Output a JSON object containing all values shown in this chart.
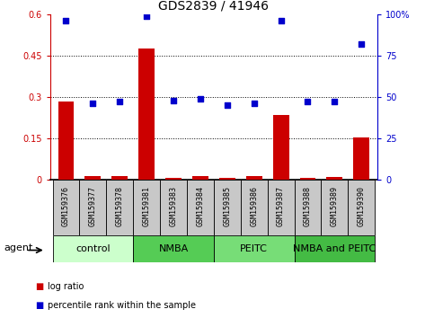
{
  "title": "GDS2839 / 41946",
  "samples": [
    "GSM159376",
    "GSM159377",
    "GSM159378",
    "GSM159381",
    "GSM159383",
    "GSM159384",
    "GSM159385",
    "GSM159386",
    "GSM159387",
    "GSM159388",
    "GSM159389",
    "GSM159390"
  ],
  "log_ratio": [
    0.285,
    0.012,
    0.013,
    0.475,
    0.008,
    0.012,
    0.007,
    0.012,
    0.235,
    0.008,
    0.009,
    0.152
  ],
  "percentile_rank": [
    96,
    46,
    47,
    99,
    48,
    49,
    45,
    46,
    96,
    47,
    47,
    82
  ],
  "ylim_left": [
    0,
    0.6
  ],
  "ylim_right": [
    0,
    100
  ],
  "yticks_left": [
    0,
    0.15,
    0.3,
    0.45,
    0.6
  ],
  "yticks_left_labels": [
    "0",
    "0.15",
    "0.3",
    "0.45",
    "0.6"
  ],
  "yticks_right": [
    0,
    25,
    50,
    75,
    100
  ],
  "yticks_right_labels": [
    "0",
    "25",
    "50",
    "75",
    "100%"
  ],
  "hlines": [
    0.15,
    0.3,
    0.45
  ],
  "bar_color": "#cc0000",
  "dot_color": "#0000cc",
  "groups": [
    {
      "label": "control",
      "start": 0,
      "end": 3,
      "color": "#ccffcc"
    },
    {
      "label": "NMBA",
      "start": 3,
      "end": 6,
      "color": "#55cc55"
    },
    {
      "label": "PEITC",
      "start": 6,
      "end": 9,
      "color": "#77dd77"
    },
    {
      "label": "NMBA and PEITC",
      "start": 9,
      "end": 12,
      "color": "#44bb44"
    }
  ],
  "left_axis_color": "#cc0000",
  "right_axis_color": "#0000cc",
  "bar_width": 0.6,
  "dot_size": 14,
  "box_color": "#c8c8c8",
  "title_fontsize": 10,
  "tick_fontsize": 7,
  "sample_fontsize": 6,
  "group_fontsize": 8
}
